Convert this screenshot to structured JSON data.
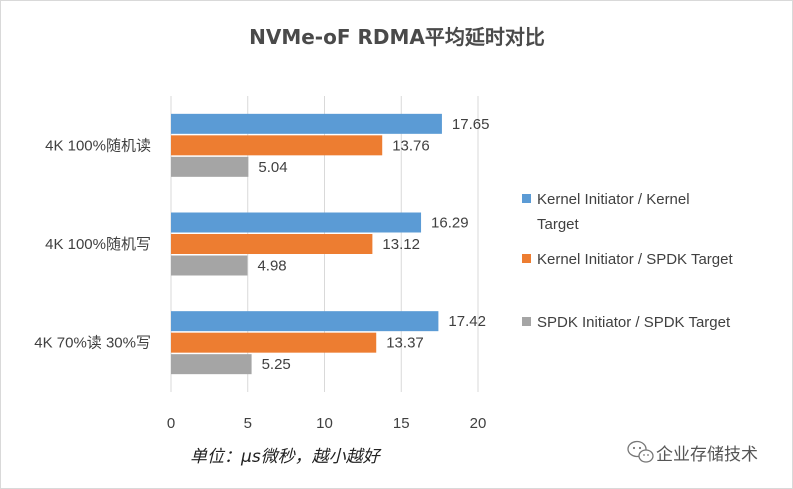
{
  "chart_data": {
    "type": "bar",
    "orientation": "horizontal",
    "title": "NVMe-oF RDMA平均延时对比",
    "categories": [
      "4K 100%随机读",
      "4K 100%随机写",
      "4K 70%读 30%写"
    ],
    "series": [
      {
        "name": "Kernel Initiator / Kernel Target",
        "color": "#5B9BD5",
        "values": [
          17.65,
          16.29,
          17.42
        ]
      },
      {
        "name": "Kernel Initiator / SPDK Target",
        "color": "#ED7D31",
        "values": [
          13.76,
          13.12,
          13.37
        ]
      },
      {
        "name": "SPDK Initiator / SPDK Target",
        "color": "#A5A5A5",
        "values": [
          5.04,
          4.98,
          5.25
        ]
      }
    ],
    "xlim": [
      0,
      20
    ],
    "xticks": [
      "0",
      "5",
      "10",
      "15",
      "20"
    ],
    "grid": true,
    "legend_position": "right"
  },
  "legend_lines": [
    [
      "Kernel Initiator / Kernel",
      "Target"
    ],
    [
      "Kernel Initiator / SPDK Target"
    ],
    [
      "SPDK Initiator / SPDK Target"
    ]
  ],
  "unit_note": "单位：μs微秒，越小越好",
  "watermark": {
    "text": "企业存储技术",
    "icon": "wechat-icon"
  }
}
